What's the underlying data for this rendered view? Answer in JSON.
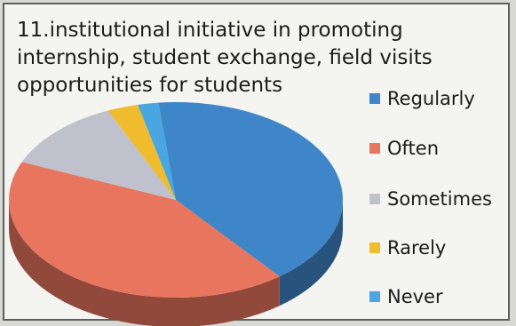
{
  "title_lines": [
    "11.institutional initiative in promoting",
    "internship, student exchange, field visits",
    "opportunities for students"
  ],
  "legend": [
    {
      "label": "Regularly",
      "color": "#3f86c8"
    },
    {
      "label": "Often",
      "color": "#e8765e"
    },
    {
      "label": "Sometimes",
      "color": "#bfc2cc"
    },
    {
      "label": "Rarely",
      "color": "#efbc2e"
    },
    {
      "label": "Never",
      "color": "#4aa6e0"
    }
  ],
  "chart_data": {
    "type": "pie",
    "title": "11.institutional initiative in promoting internship, student exchange, field visits opportunities for students",
    "categories": [
      "Regularly",
      "Often",
      "Sometimes",
      "Rarely",
      "Never"
    ],
    "values": [
      41,
      42,
      12,
      3,
      2
    ],
    "colors": [
      "#3f86c8",
      "#e8765e",
      "#bfc2cc",
      "#efbc2e",
      "#4aa6e0"
    ],
    "style": "3d",
    "legend_position": "right"
  }
}
